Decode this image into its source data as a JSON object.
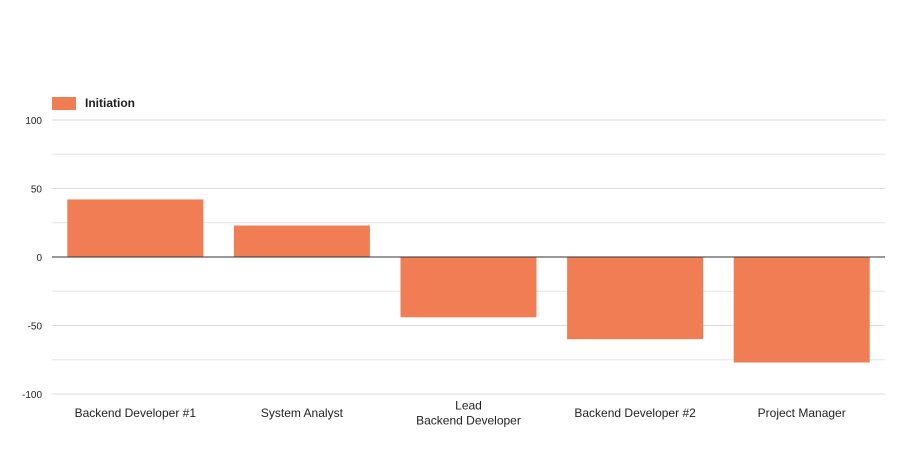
{
  "chart_data": {
    "type": "bar",
    "categories": [
      [
        "Backend Developer #1"
      ],
      [
        "System Analyst"
      ],
      [
        "Lead",
        "Backend Developer"
      ],
      [
        "Backend Developer #2"
      ],
      [
        "Project Manager"
      ]
    ],
    "series": [
      {
        "name": "Initiation",
        "color": "#f07d53",
        "values": [
          42,
          23,
          -44,
          -60,
          -77
        ]
      }
    ],
    "ylim": [
      -100,
      100
    ],
    "y_ticks": [
      100,
      50,
      0,
      -50,
      -100
    ],
    "y_tick_labels": [
      "100",
      "50",
      "0",
      "-50",
      "-100"
    ],
    "minor_gridlines": [
      75,
      25,
      -25,
      -75
    ],
    "grid": true,
    "legend_position": "top-left",
    "title": "",
    "xlabel": "",
    "ylabel": ""
  }
}
